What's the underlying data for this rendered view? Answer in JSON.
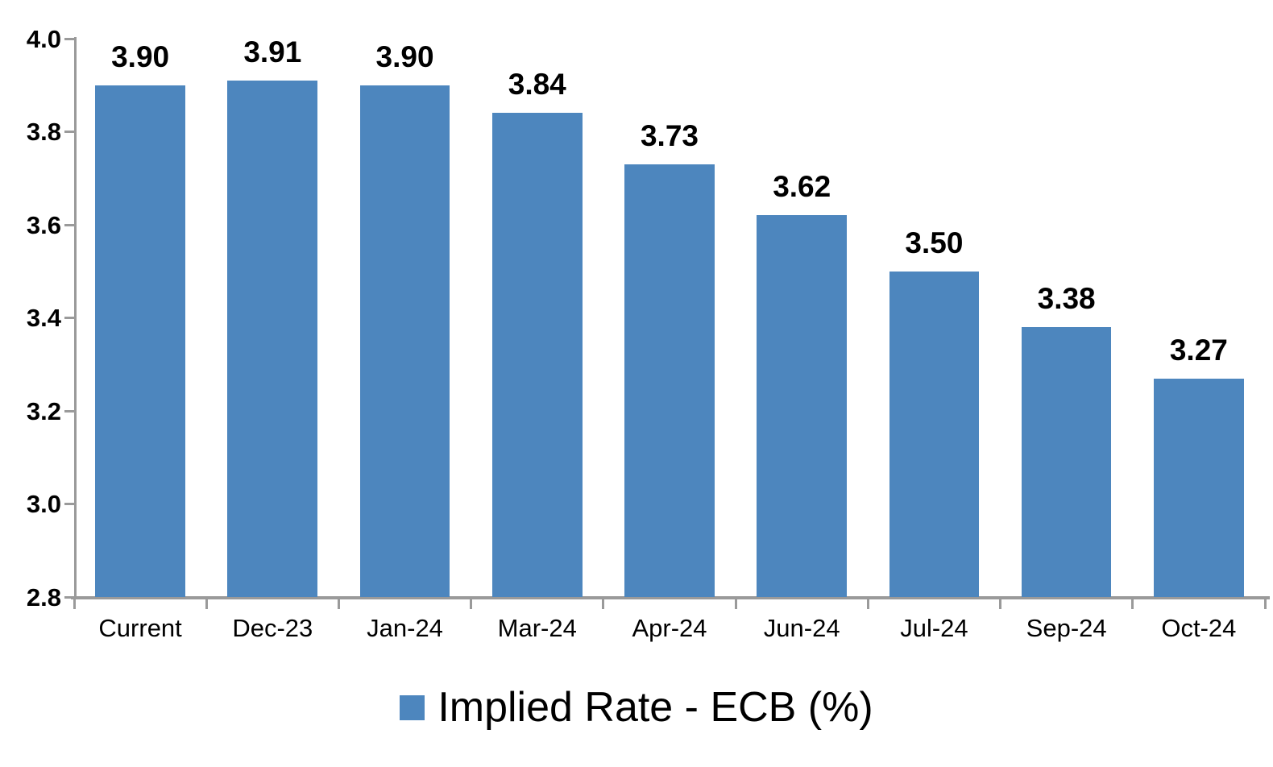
{
  "chart_data": {
    "type": "bar",
    "categories": [
      "Current",
      "Dec-23",
      "Jan-24",
      "Mar-24",
      "Apr-24",
      "Jun-24",
      "Jul-24",
      "Sep-24",
      "Oct-24"
    ],
    "values": [
      3.9,
      3.91,
      3.9,
      3.84,
      3.73,
      3.62,
      3.5,
      3.38,
      3.27
    ],
    "data_labels": [
      "3.90",
      "3.91",
      "3.90",
      "3.84",
      "3.73",
      "3.62",
      "3.50",
      "3.38",
      "3.27"
    ],
    "series": [
      {
        "name": "Implied Rate - ECB (%)",
        "values": [
          3.9,
          3.91,
          3.9,
          3.84,
          3.73,
          3.62,
          3.5,
          3.38,
          3.27
        ]
      }
    ],
    "title": "",
    "xlabel": "",
    "ylabel": "",
    "ylim": [
      2.8,
      4.0
    ],
    "ytick_step": 0.2,
    "ytick_labels": [
      "4.0",
      "3.8",
      "3.6",
      "3.4",
      "3.2",
      "3.0",
      "2.8"
    ],
    "grid": false,
    "legend_position": "bottom",
    "colors": {
      "bar_fill": "#4d86be",
      "axis_line": "#9a9a9a",
      "text": "#000000",
      "background": "#ffffff"
    }
  },
  "legend": {
    "label": "Implied Rate - ECB (%)"
  }
}
